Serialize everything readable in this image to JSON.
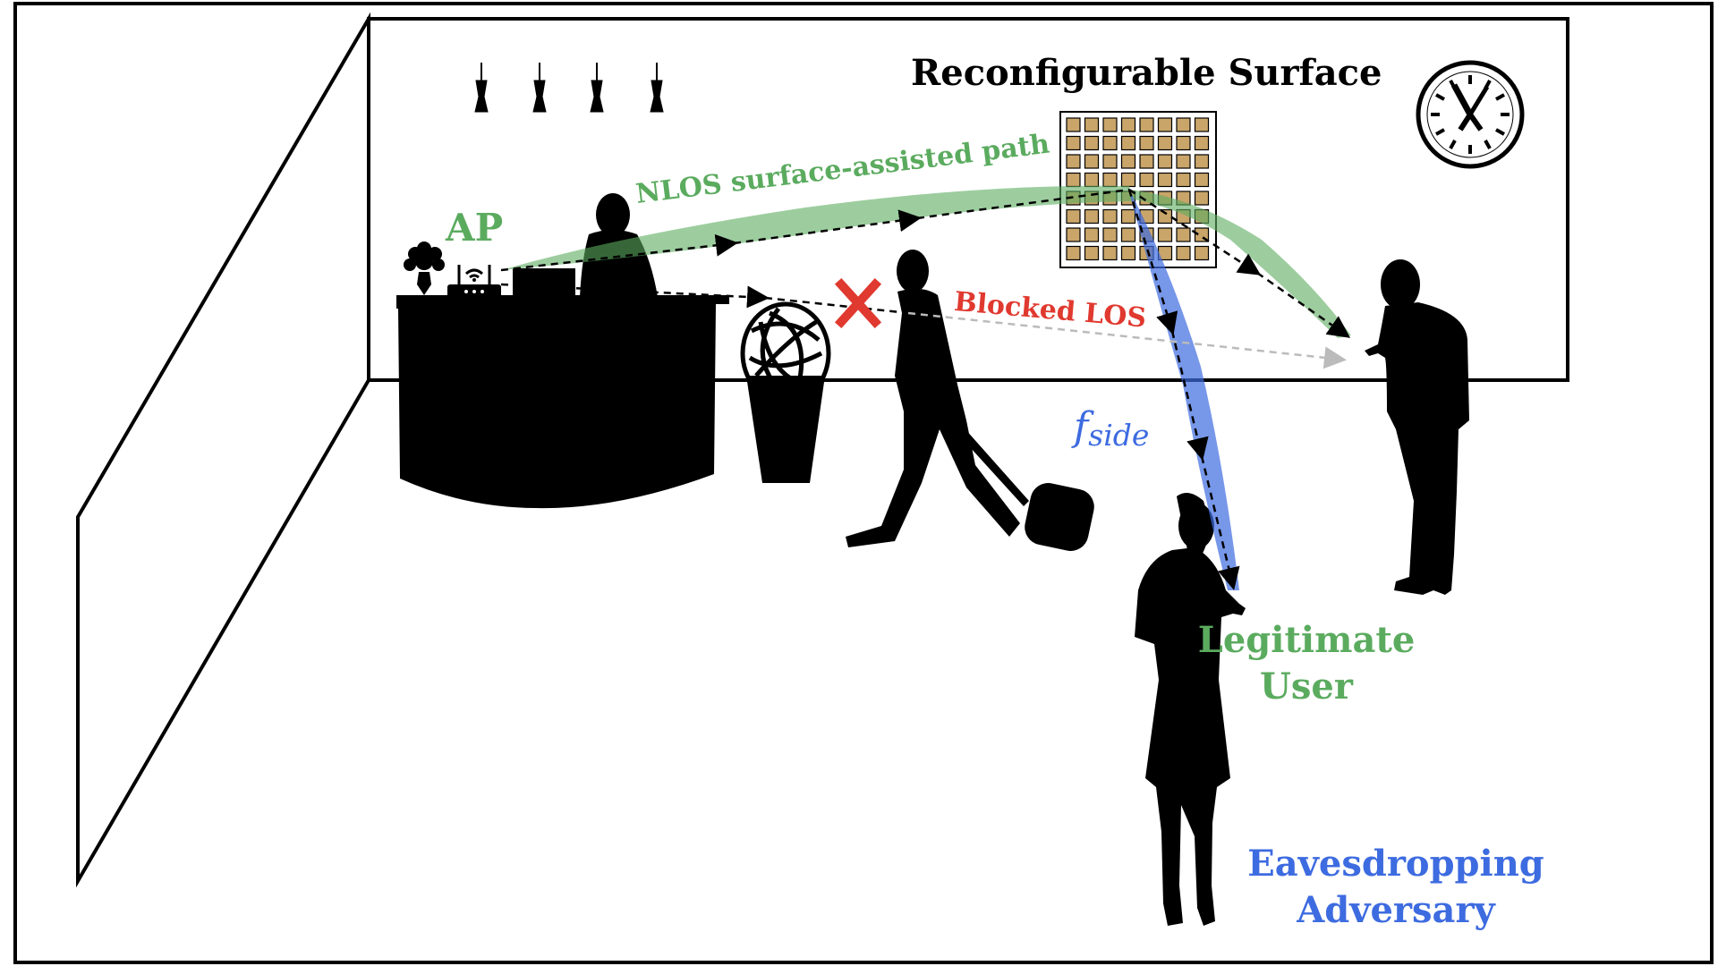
{
  "labels": {
    "surface_title": "Reconfigurable Surface",
    "ap": "AP",
    "nlos_path": "NLOS surface-assisted path",
    "blocked_los": "Blocked LOS",
    "fside_main": "f",
    "fside_sub": "side",
    "legitimate_user_line1": "Legitimate",
    "legitimate_user_line2": "User",
    "adversary_line1": "Eavesdropping",
    "adversary_line2": "Adversary"
  },
  "colors": {
    "nlos_green": "#5bab5f",
    "blocked_red": "#e0392f",
    "side_blue": "#3d6be0",
    "surface_tile": "#c9a56a",
    "silhouette": "#000000"
  },
  "icons": [
    "wifi-router-icon",
    "wall-clock-icon",
    "blocked-x-icon",
    "pendant-lamp-icon",
    "flower-vase-icon"
  ]
}
